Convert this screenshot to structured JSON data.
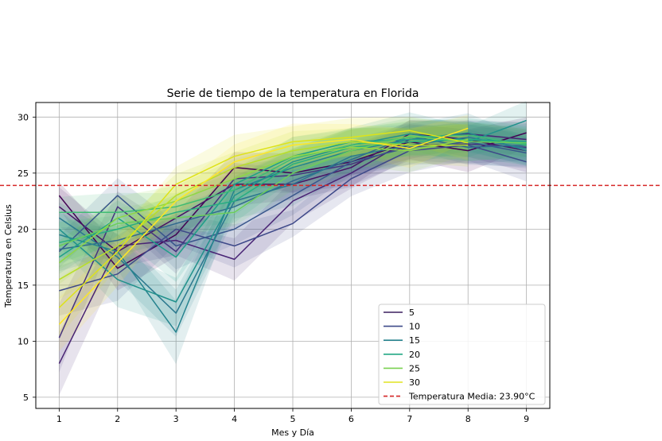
{
  "chart_data": {
    "type": "line",
    "title": "Serie de tiempo de la temperatura en Florida",
    "xlabel": "Mes y Día",
    "ylabel": "Temperatura en Celsius",
    "x": [
      1,
      2,
      3,
      4,
      5,
      6,
      7,
      8,
      9
    ],
    "xlim": [
      0.6,
      9.4
    ],
    "ylim": [
      4,
      31.3
    ],
    "xticks": [
      "1",
      "2",
      "3",
      "4",
      "5",
      "6",
      "7",
      "8",
      "9"
    ],
    "yticks": [
      "5",
      "10",
      "15",
      "20",
      "25",
      "30"
    ],
    "grid": true,
    "legend_position": "bottom-right",
    "colormap": "viridis",
    "shaded_confidence_band": true,
    "series": [
      {
        "name": "5",
        "color": "#440154",
        "values": [
          23.0,
          16.5,
          19.5,
          25.5,
          25.0,
          26.0,
          27.8,
          27.0,
          28.6
        ]
      },
      {
        "name": "",
        "color": "#471365",
        "values": [
          22.0,
          18.0,
          21.0,
          24.0,
          24.0,
          25.5,
          28.5,
          28.0,
          27.0
        ]
      },
      {
        "name": "",
        "color": "#482374",
        "values": [
          8.0,
          18.5,
          19.0,
          17.3,
          22.5,
          25.0,
          28.0,
          28.5,
          28.0
        ]
      },
      {
        "name": "",
        "color": "#46337f",
        "values": [
          10.3,
          22.0,
          18.0,
          24.5,
          24.8,
          25.8,
          27.5,
          27.6,
          27.3
        ]
      },
      {
        "name": "10",
        "color": "#3e4989",
        "values": [
          14.5,
          16.0,
          20.0,
          18.5,
          20.5,
          24.5,
          27.0,
          27.5,
          26.0
        ]
      },
      {
        "name": "",
        "color": "#39568c",
        "values": [
          18.0,
          23.0,
          18.5,
          20.0,
          23.0,
          26.0,
          27.3,
          27.8,
          26.8
        ]
      },
      {
        "name": "",
        "color": "#31688e",
        "values": [
          18.2,
          19.0,
          20.5,
          22.0,
          24.3,
          26.2,
          28.3,
          27.3,
          27.5
        ]
      },
      {
        "name": "15",
        "color": "#2a788e",
        "values": [
          21.0,
          17.5,
          12.5,
          22.5,
          24.0,
          26.5,
          27.5,
          28.2,
          27.2
        ]
      },
      {
        "name": "",
        "color": "#25838e",
        "values": [
          19.5,
          18.0,
          10.8,
          23.5,
          25.5,
          27.0,
          28.0,
          28.6,
          27.0
        ]
      },
      {
        "name": "",
        "color": "#21918c",
        "values": [
          20.0,
          15.5,
          13.5,
          23.0,
          26.0,
          27.5,
          28.5,
          27.8,
          29.7
        ]
      },
      {
        "name": "20",
        "color": "#1fa088",
        "values": [
          17.5,
          21.0,
          17.5,
          24.0,
          26.5,
          27.8,
          28.0,
          28.0,
          27.8
        ]
      },
      {
        "name": "",
        "color": "#28ae80",
        "values": [
          18.8,
          20.0,
          21.5,
          22.5,
          25.8,
          27.3,
          27.8,
          28.0,
          27.6
        ]
      },
      {
        "name": "",
        "color": "#3fbc73",
        "values": [
          21.5,
          21.5,
          22.0,
          23.5,
          26.3,
          27.5,
          28.2,
          28.4,
          27.5
        ]
      },
      {
        "name": "25",
        "color": "#6ccd5a",
        "values": [
          18.5,
          20.5,
          21.0,
          21.5,
          25.0,
          27.0,
          28.3,
          27.8,
          27.7
        ]
      },
      {
        "name": "",
        "color": "#8fd744",
        "values": [
          17.0,
          21.0,
          22.5,
          24.5,
          26.5,
          27.3,
          27.0,
          28.0,
          null
        ]
      },
      {
        "name": "",
        "color": "#b8de29",
        "values": [
          15.5,
          18.5,
          23.0,
          25.5,
          27.0,
          27.8,
          27.5,
          27.5,
          null
        ]
      },
      {
        "name": "30",
        "color": "#dde318",
        "values": [
          13.0,
          18.0,
          24.0,
          26.5,
          27.8,
          28.2,
          28.8,
          27.7,
          null
        ]
      },
      {
        "name": "",
        "color": "#fde725",
        "values": [
          11.5,
          17.0,
          22.5,
          26.0,
          27.5,
          28.0,
          27.2,
          29.0,
          null
        ]
      }
    ],
    "legend": [
      {
        "label": "5",
        "color": "#3b1e5f",
        "style": "solid"
      },
      {
        "label": "10",
        "color": "#3e4a89",
        "style": "solid"
      },
      {
        "label": "15",
        "color": "#26828e",
        "style": "solid"
      },
      {
        "label": "20",
        "color": "#22a884",
        "style": "solid"
      },
      {
        "label": "25",
        "color": "#7ad151",
        "style": "solid"
      },
      {
        "label": "30",
        "color": "#e0e320",
        "style": "solid"
      },
      {
        "label": "Temperatura Media: 23.90°C",
        "color": "#d62728",
        "style": "dashed"
      }
    ],
    "reference_line": {
      "y": 23.9,
      "color": "#d62728",
      "style": "dashed",
      "label": "Temperatura Media: 23.90°C"
    }
  }
}
